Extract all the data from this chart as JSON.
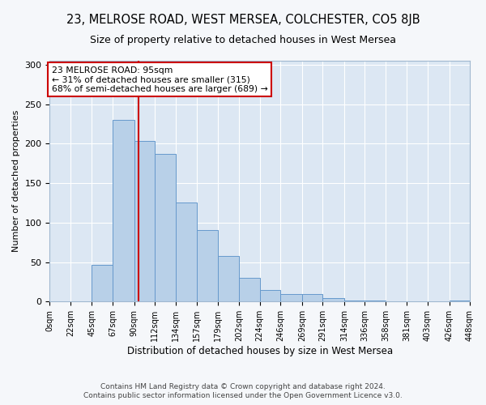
{
  "title": "23, MELROSE ROAD, WEST MERSEA, COLCHESTER, CO5 8JB",
  "subtitle": "Size of property relative to detached houses in West Mersea",
  "xlabel": "Distribution of detached houses by size in West Mersea",
  "ylabel": "Number of detached properties",
  "footnote1": "Contains HM Land Registry data © Crown copyright and database right 2024.",
  "footnote2": "Contains public sector information licensed under the Open Government Licence v3.0.",
  "bin_edges": [
    0,
    22,
    45,
    67,
    90,
    112,
    134,
    157,
    179,
    202,
    224,
    246,
    269,
    291,
    314,
    336,
    358,
    381,
    403,
    426,
    448
  ],
  "bin_labels": [
    "0sqm",
    "22sqm",
    "45sqm",
    "67sqm",
    "90sqm",
    "112sqm",
    "134sqm",
    "157sqm",
    "179sqm",
    "202sqm",
    "224sqm",
    "246sqm",
    "269sqm",
    "291sqm",
    "314sqm",
    "336sqm",
    "358sqm",
    "381sqm",
    "403sqm",
    "426sqm",
    "448sqm"
  ],
  "counts": [
    0,
    0,
    47,
    230,
    203,
    187,
    125,
    91,
    58,
    30,
    15,
    10,
    10,
    4,
    1,
    1,
    0,
    0,
    0,
    1
  ],
  "bar_color": "#b8d0e8",
  "bar_edge_color": "#6699cc",
  "reference_line_x": 95,
  "reference_line_color": "#cc0000",
  "annotation_title": "23 MELROSE ROAD: 95sqm",
  "annotation_line1": "← 31% of detached houses are smaller (315)",
  "annotation_line2": "68% of semi-detached houses are larger (689) →",
  "annotation_box_facecolor": "#ffffff",
  "annotation_box_edgecolor": "#cc0000",
  "ylim": [
    0,
    305
  ],
  "fig_facecolor": "#f5f7fa",
  "plot_facecolor": "#dce7f3",
  "grid_color": "#ffffff",
  "spine_color": "#a0b8d0",
  "tick_label_fontsize": 7,
  "ytick_fontsize": 8,
  "ylabel_fontsize": 8,
  "xlabel_fontsize": 8.5,
  "title_fontsize": 10.5,
  "subtitle_fontsize": 9,
  "footnote_fontsize": 6.5,
  "footnote_color": "#444444"
}
